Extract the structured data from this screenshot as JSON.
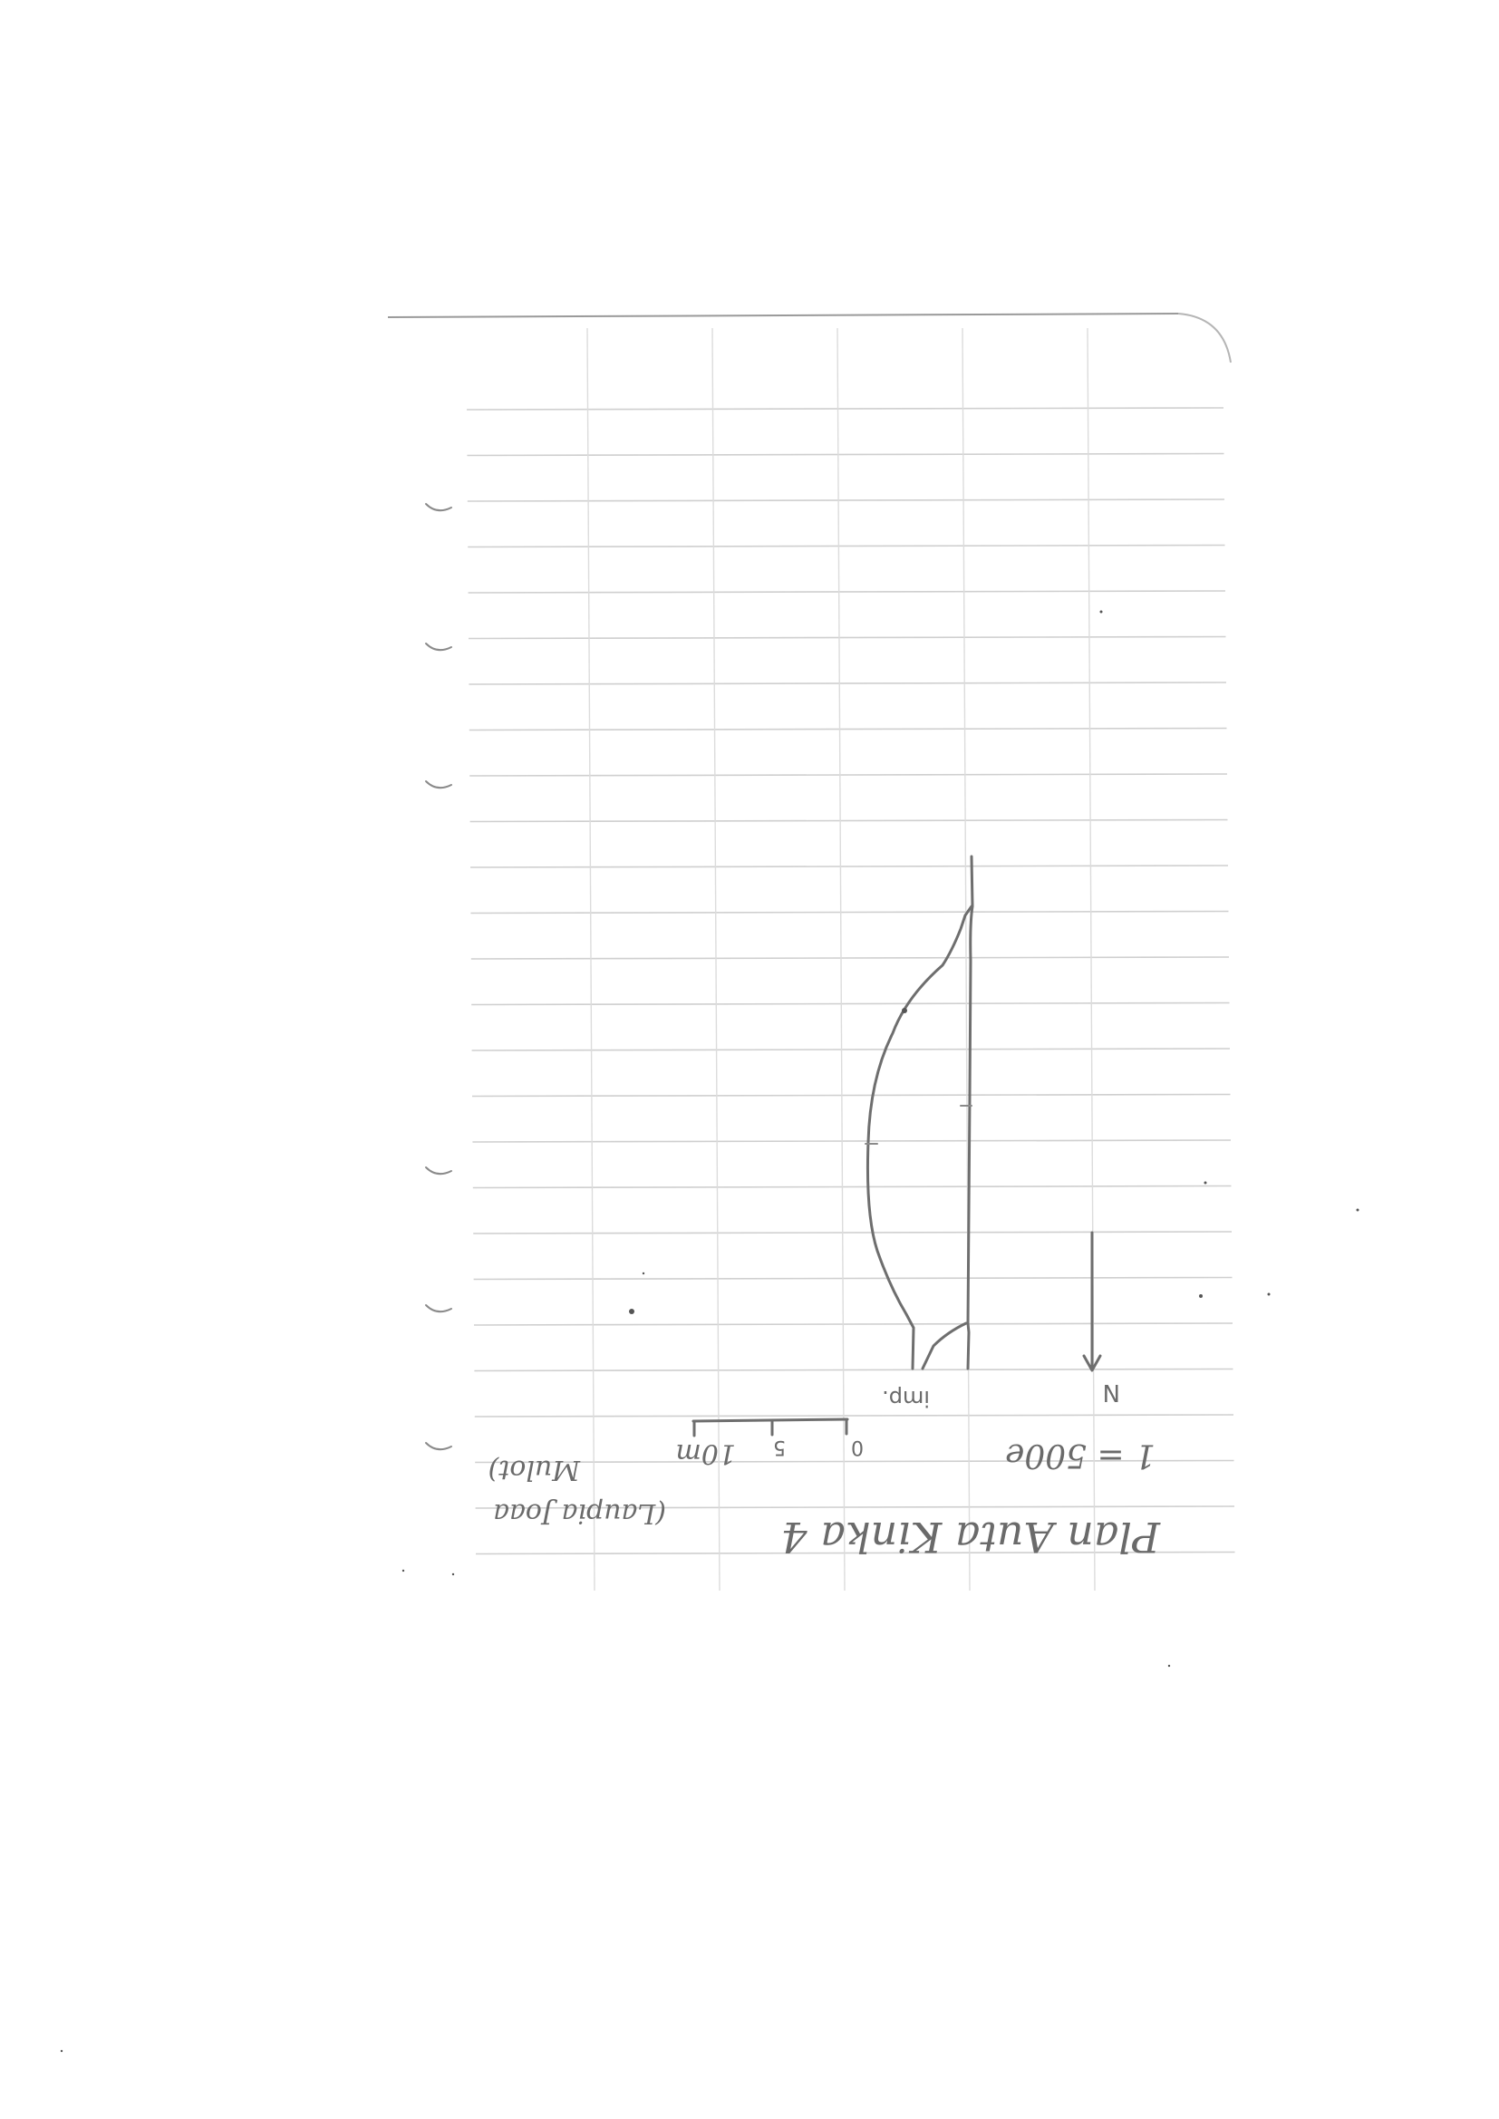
{
  "sketch": {
    "title": "Plan Auta Kinka 4",
    "title_note_line1": "(Laupia Joaa",
    "title_note_line2": "Mulot)",
    "scale_ratio": "1 = 500e",
    "north_label": "N",
    "scale_bar_ticks": [
      "0",
      "5",
      "10m"
    ],
    "feature_label": "imp."
  }
}
